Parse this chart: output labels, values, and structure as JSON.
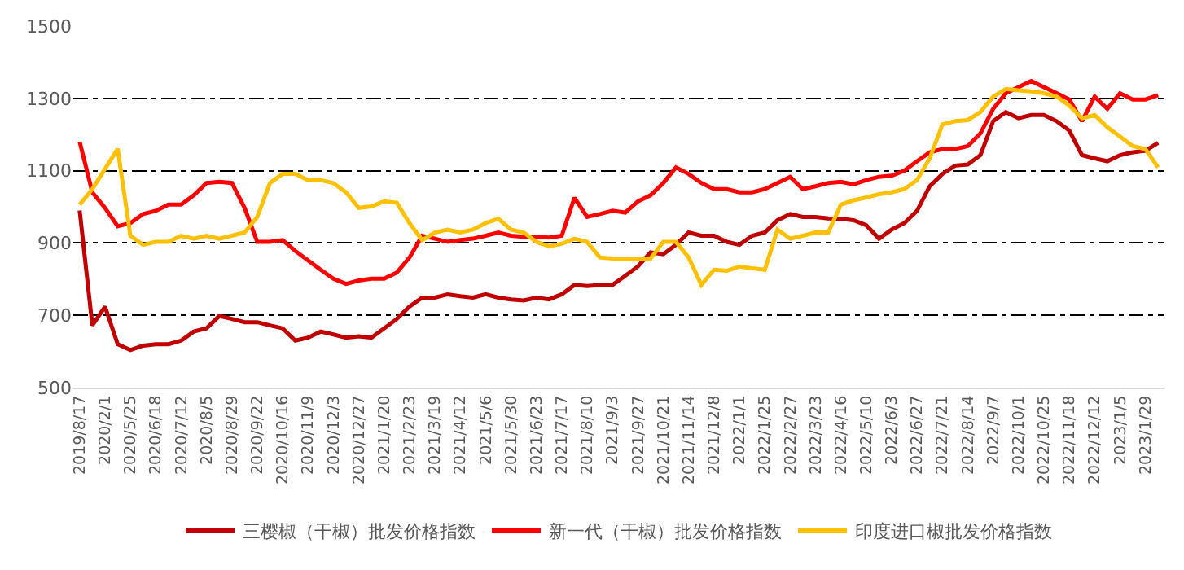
{
  "chart_data": {
    "type": "line",
    "categories": [
      "2019/8/17",
      null,
      "2020/2/1",
      null,
      "2020/5/25",
      null,
      "2020/6/18",
      null,
      "2020/7/12",
      null,
      "2020/8/5",
      null,
      "2020/8/29",
      null,
      "2020/9/22",
      null,
      "2020/10/16",
      null,
      "2020/11/9",
      null,
      "2020/12/3",
      null,
      "2020/12/27",
      null,
      "2021/1/20",
      null,
      "2021/2/23",
      null,
      "2021/3/19",
      null,
      "2021/4/12",
      null,
      "2021/5/6",
      null,
      "2021/5/30",
      null,
      "2021/6/23",
      null,
      "2021/7/17",
      null,
      "2021/8/10",
      null,
      "2021/9/3",
      null,
      "2021/9/27",
      null,
      "2021/10/21",
      null,
      "2021/11/14",
      null,
      "2021/12/8",
      null,
      "2022/1/1",
      null,
      "2022/1/25",
      null,
      "2022/2/27",
      null,
      "2022/3/23",
      null,
      "2022/4/16",
      null,
      "2022/5/10",
      null,
      "2022/6/3",
      null,
      "2022/6/27",
      null,
      "2022/7/21",
      null,
      "2022/8/14",
      null,
      "2022/9/7",
      null,
      "2022/10/1",
      null,
      "2022/10/25",
      null,
      "2022/11/18",
      null,
      "2022/12/12",
      null,
      "2023/1/5",
      null,
      "2023/1/29",
      null
    ],
    "series": [
      {
        "name": "三樱椒（干椒）批发价格指数",
        "color": "#c00000",
        "values": [
          990,
          672,
          724,
          620,
          604,
          616,
          620,
          620,
          630,
          655,
          664,
          698,
          690,
          681,
          681,
          672,
          664,
          630,
          638,
          655,
          647,
          638,
          642,
          638,
          664,
          690,
          724,
          749,
          749,
          758,
          753,
          749,
          758,
          749,
          744,
          741,
          749,
          744,
          758,
          784,
          781,
          784,
          784,
          809,
          835,
          874,
          869,
          895,
          929,
          920,
          920,
          903,
          895,
          920,
          929,
          963,
          980,
          972,
          972,
          968,
          967,
          963,
          949,
          912,
          937,
          955,
          989,
          1057,
          1091,
          1114,
          1117,
          1143,
          1237,
          1262,
          1245,
          1254,
          1254,
          1237,
          1211,
          1143,
          1134,
          1126,
          1143,
          1151,
          1155,
          1177
        ]
      },
      {
        "name": "新一代（干椒）批发价格指数",
        "color": "#ff0000",
        "values": [
          1180,
          1040,
          997,
          946,
          955,
          980,
          989,
          1006,
          1006,
          1032,
          1066,
          1069,
          1066,
          997,
          903,
          903,
          908,
          878,
          852,
          826,
          801,
          787,
          796,
          801,
          801,
          818,
          860,
          920,
          912,
          903,
          908,
          912,
          920,
          929,
          920,
          917,
          917,
          915,
          920,
          1025,
          972,
          980,
          989,
          984,
          1015,
          1032,
          1066,
          1109,
          1091,
          1066,
          1049,
          1049,
          1040,
          1040,
          1049,
          1066,
          1083,
          1049,
          1057,
          1066,
          1069,
          1062,
          1074,
          1083,
          1086,
          1100,
          1126,
          1151,
          1160,
          1160,
          1168,
          1203,
          1271,
          1314,
          1331,
          1348,
          1331,
          1314,
          1297,
          1237,
          1305,
          1271,
          1314,
          1297,
          1297,
          1309
        ]
      },
      {
        "name": "印度进口椒批发价格指数",
        "color": "#ffc000",
        "values": [
          1006,
          1049,
          1105,
          1160,
          920,
          895,
          903,
          903,
          920,
          912,
          920,
          912,
          920,
          929,
          972,
          1066,
          1091,
          1091,
          1074,
          1074,
          1066,
          1040,
          997,
          1001,
          1015,
          1011,
          955,
          908,
          929,
          937,
          929,
          937,
          955,
          967,
          937,
          929,
          903,
          891,
          898,
          912,
          903,
          860,
          857,
          857,
          857,
          857,
          903,
          903,
          860,
          784,
          826,
          823,
          835,
          830,
          826,
          937,
          912,
          920,
          929,
          929,
          1006,
          1018,
          1026,
          1035,
          1040,
          1049,
          1074,
          1134,
          1228,
          1237,
          1240,
          1262,
          1305,
          1326,
          1322,
          1319,
          1314,
          1305,
          1280,
          1245,
          1254,
          1220,
          1194,
          1168,
          1160,
          1109
        ]
      }
    ],
    "ylim": [
      500,
      1500
    ],
    "yticks": [
      500,
      700,
      900,
      1100,
      1300,
      1500
    ],
    "grid": "y",
    "legend": "bottom",
    "marker": "none",
    "line_style": "solid"
  }
}
